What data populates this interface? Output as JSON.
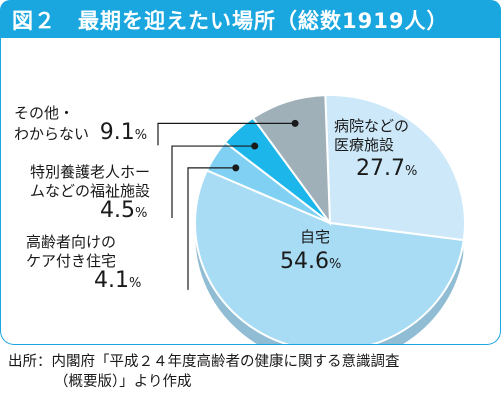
{
  "figure": {
    "title": "図２　最期を迎えたい場所（総数1919人）"
  },
  "chart_data": {
    "type": "pie",
    "title": "最期を迎えたい場所（総数1919人）",
    "total_label": "総数1919人",
    "slices": [
      {
        "label": "病院などの医療施設",
        "label_lines": [
          "病院などの",
          "医療施設"
        ],
        "value": 27.7,
        "color": "#cde9f9"
      },
      {
        "label": "自宅",
        "label_lines": [
          "自宅"
        ],
        "value": 54.6,
        "color": "#a8dcf5"
      },
      {
        "label": "ケア付き住宅",
        "label_lines": [
          "高齢者向けの",
          "ケア付き住宅"
        ],
        "value": 4.1,
        "color": "#7fd0f3"
      },
      {
        "label": "特別養護老人ホームなどの福祉施設",
        "label_lines": [
          "特別養護老人ホー",
          "ムなどの福祉施設"
        ],
        "value": 4.5,
        "color": "#1cb6ea"
      },
      {
        "label": "その他・わからない",
        "label_lines": [
          "その他・",
          "わからない"
        ],
        "value": 9.1,
        "color": "#9fb0b8"
      }
    ],
    "unit": "%"
  },
  "source": {
    "line1": "出所：内閣府「平成２４年度高齢者の健康に関する意識調査",
    "line2": "（概要版）」より作成"
  }
}
